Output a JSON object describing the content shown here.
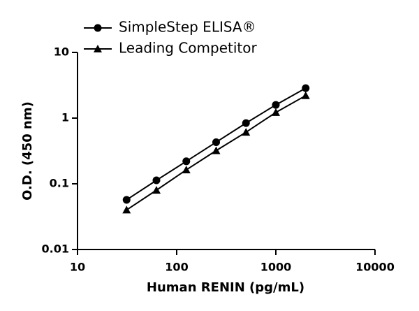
{
  "chart_data": {
    "type": "line",
    "x_label": "Human RENIN (pg/mL)",
    "y_label": "O.D. (450 nm)",
    "x_log": true,
    "y_log": true,
    "xlim": [
      10,
      10000
    ],
    "xticks": [
      10,
      100,
      1000,
      10000
    ],
    "ylim": [
      0.01,
      10
    ],
    "yticks": [
      0.01,
      0.1,
      1,
      10
    ],
    "x": [
      31.25,
      62.5,
      125,
      250,
      500,
      1000,
      2000
    ],
    "series": [
      {
        "name": "SimpleStep ELISA®",
        "color": "#000000",
        "marker": "circle",
        "values": [
          0.057,
          0.113,
          0.22,
          0.43,
          0.84,
          1.59,
          2.86
        ]
      },
      {
        "name": "Leading Competitor",
        "color": "#000000",
        "marker": "triangle",
        "values": [
          0.04,
          0.08,
          0.163,
          0.32,
          0.61,
          1.22,
          2.2
        ]
      }
    ]
  }
}
